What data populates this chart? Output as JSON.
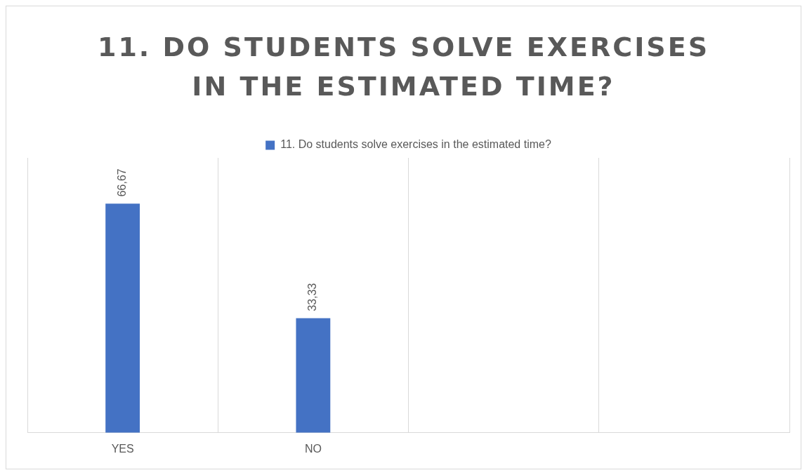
{
  "chart_data": {
    "type": "bar",
    "title": "11. DO STUDENTS SOLVE EXERCISES IN THE ESTIMATED TIME?",
    "categories": [
      "YES",
      "NO",
      null,
      null
    ],
    "series": [
      {
        "name": "11. Do students solve exercises in the estimated time?",
        "color": "#4472c4",
        "values": [
          66.67,
          33.33,
          null,
          null
        ],
        "value_labels": [
          "66,67",
          "33,33",
          null,
          null
        ]
      }
    ],
    "ylim": [
      0,
      80
    ],
    "tick_labels": "x",
    "grid": "x",
    "legend": "top"
  }
}
